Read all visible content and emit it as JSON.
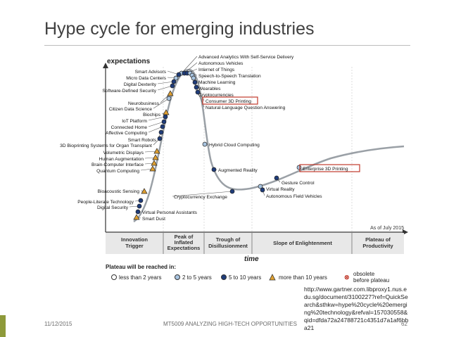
{
  "slide": {
    "title": "Hype cycle for emerging industries",
    "date": "11/12/2015",
    "course": "MT5009 ANALYZING HIGH-TECH OPPORTUNITIES",
    "page": "62",
    "source_url": "http://www.gartner.com.libproxy1.nus.edu.sg/document/3100227?ref=QuickSearch&sthkw=hype%20cycle%20emerging%20technology&refval=157030558&qid=dfda72a24788721c4351d7a1af6bba21"
  },
  "chart": {
    "y_label": "expectations",
    "x_label": "time",
    "as_of": "As of July 2015",
    "phases": [
      "Innovation Trigger",
      "Peak of Inflated Expectations",
      "Trough of Disillusionment",
      "Slope of Enlightenment",
      "Plateau of Productivity"
    ],
    "legend_title": "Plateau will be reached in:",
    "legend": [
      "less than 2 years",
      "2 to 5 years",
      "5 to 10 years",
      "more than 10 years",
      "obsolete before plateau"
    ],
    "colors": {
      "circle_open": "#ffffff",
      "circle_light": "#a8c4e0",
      "circle_dark": "#1f3c7a",
      "triangle": "#e0a030",
      "highlight_box": "#c0392b",
      "curve": "#9aa0a6"
    }
  },
  "technologies": [
    {
      "label": "Advanced Analytics With Self-Service Delivery",
      "marker": "light"
    },
    {
      "label": "Autonomous Vehicles",
      "marker": "dark"
    },
    {
      "label": "Internet of Things",
      "marker": "dark"
    },
    {
      "label": "Speech-to-Speech Translation",
      "marker": "light"
    },
    {
      "label": "Machine Learning",
      "marker": "light"
    },
    {
      "label": "Wearables",
      "marker": "light"
    },
    {
      "label": "Cryptocurrencies",
      "marker": "dark"
    },
    {
      "label": "Consumer 3D Printing",
      "marker": "dark",
      "highlight": true
    },
    {
      "label": "Natural-Language Question Answering",
      "marker": "dark"
    },
    {
      "label": "Smart Advisors",
      "marker": "dark"
    },
    {
      "label": "Micro Data Centers",
      "marker": "light"
    },
    {
      "label": "Digital Dexterity",
      "marker": "dark"
    },
    {
      "label": "Software-Defined Security",
      "marker": "dark"
    },
    {
      "label": "Neurobusiness",
      "marker": "triangle"
    },
    {
      "label": "Citizen Data Science",
      "marker": "light"
    },
    {
      "label": "Biochips",
      "marker": "triangle"
    },
    {
      "label": "IoT Platform",
      "marker": "dark"
    },
    {
      "label": "Connected Home",
      "marker": "dark"
    },
    {
      "label": "Affective Computing",
      "marker": "dark"
    },
    {
      "label": "Smart Robots",
      "marker": "dark"
    },
    {
      "label": "3D Bioprinting Systems for Organ Transplant",
      "marker": "dark"
    },
    {
      "label": "Volumetric Displays",
      "marker": "triangle"
    },
    {
      "label": "Human Augmentation",
      "marker": "triangle"
    },
    {
      "label": "Brain-Computer Interface",
      "marker": "triangle"
    },
    {
      "label": "Quantum Computing",
      "marker": "triangle"
    },
    {
      "label": "Bioacoustic Sensing",
      "marker": "triangle"
    },
    {
      "label": "People-Literate Technology",
      "marker": "dark"
    },
    {
      "label": "Digital Security",
      "marker": "dark"
    },
    {
      "label": "Virtual Personal Assistants",
      "marker": "dark"
    },
    {
      "label": "Smart Dust",
      "marker": "triangle"
    },
    {
      "label": "Hybrid Cloud Computing",
      "marker": "light"
    },
    {
      "label": "Augmented Reality",
      "marker": "dark"
    },
    {
      "label": "Cryptocurrency Exchange",
      "marker": "dark"
    },
    {
      "label": "Virtual Reality",
      "marker": "light"
    },
    {
      "label": "Autonomous Field Vehicles",
      "marker": "dark"
    },
    {
      "label": "Gesture Control",
      "marker": "dark"
    },
    {
      "label": "Enterprise 3D Printing",
      "marker": "light",
      "highlight": true
    }
  ]
}
